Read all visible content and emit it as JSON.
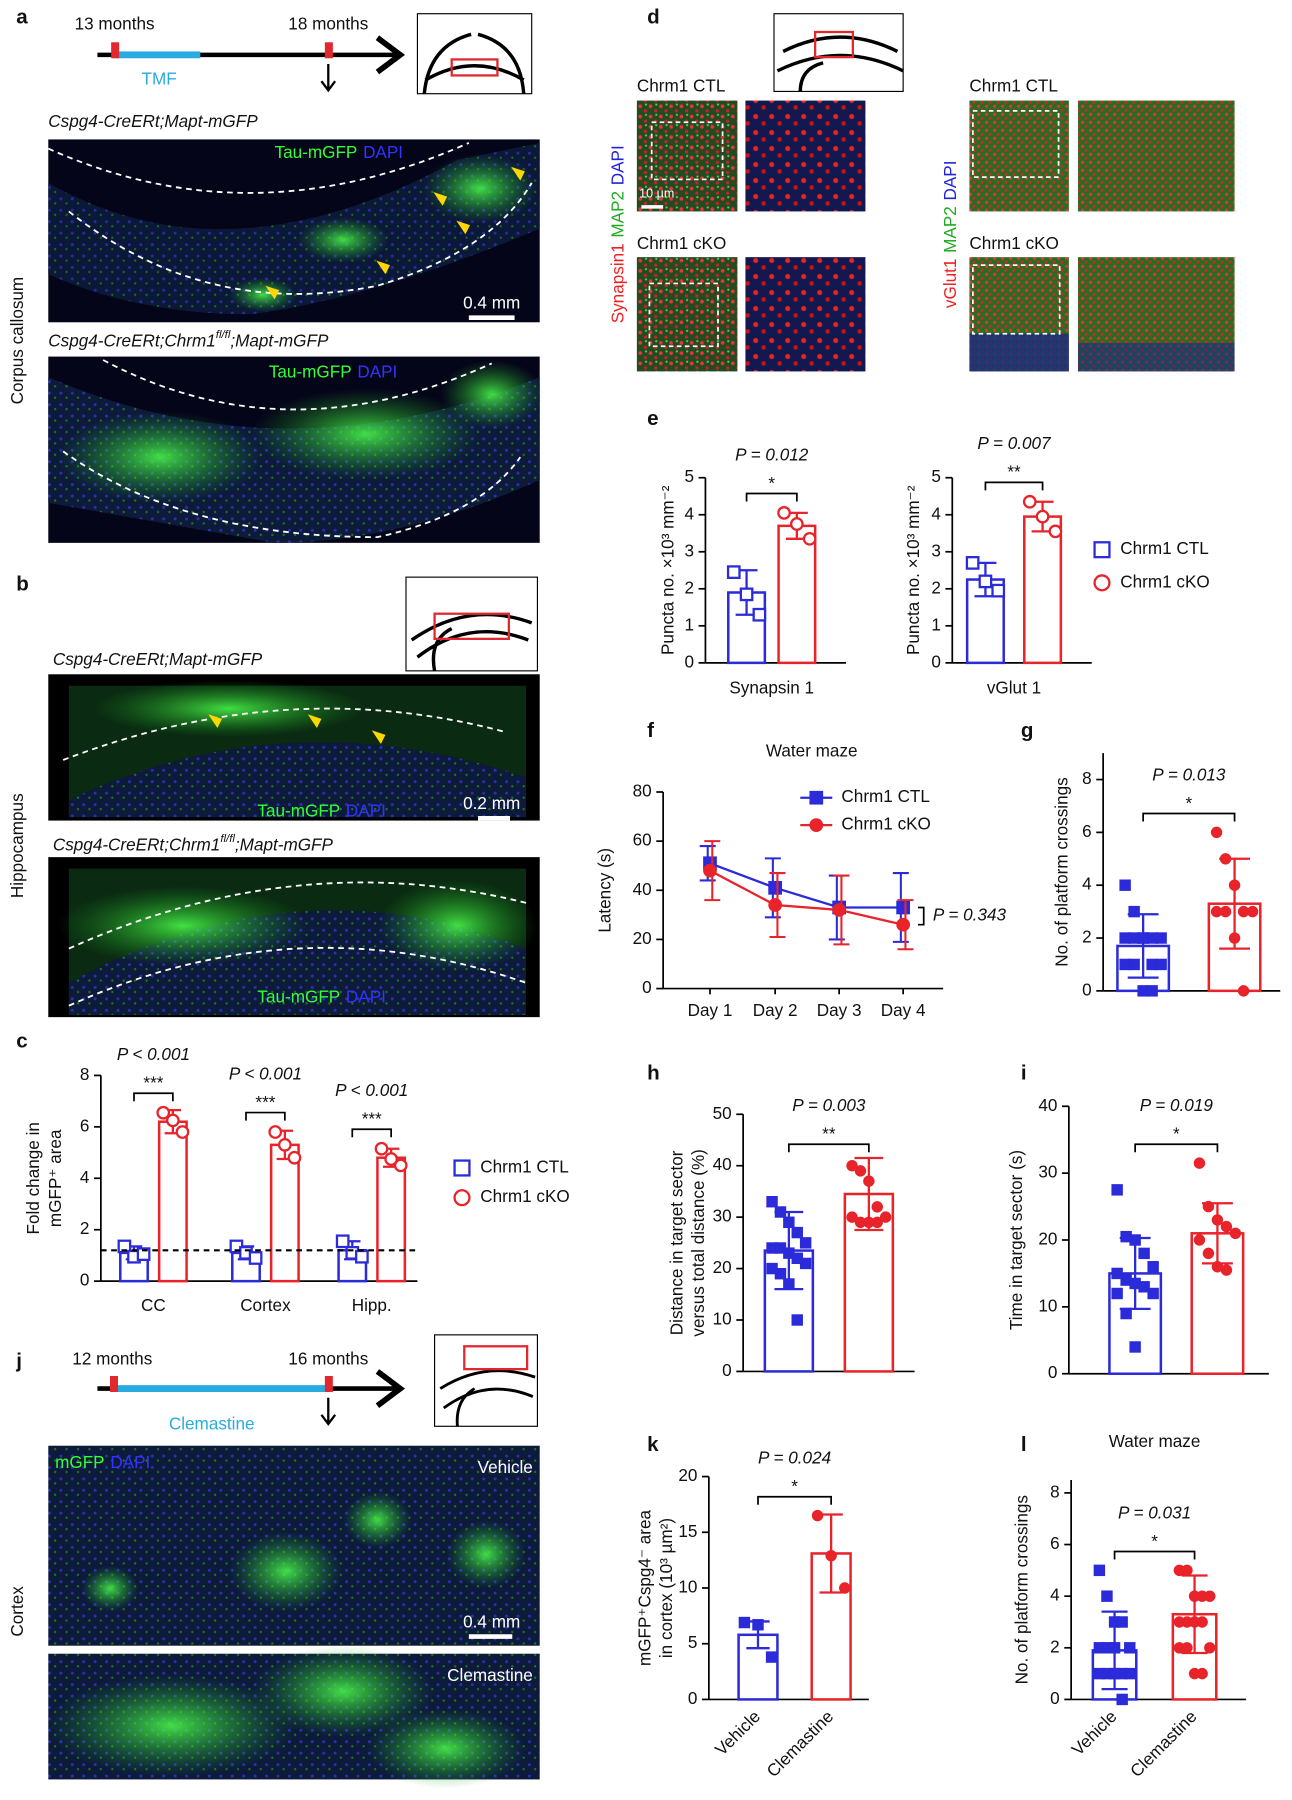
{
  "panels": {
    "a": {
      "letter": "a",
      "timeline": [
        "13 months",
        "18 months"
      ],
      "treatment": "TMF",
      "genotype_ctl": "Cspg4-CreERt;Mapt-mGFP",
      "genotype_cko": [
        "Cspg4-CreERt;Chrm1",
        "fl/fl",
        ";Mapt-mGFP"
      ],
      "stains": [
        "Tau-mGFP",
        "DAPI"
      ],
      "scale": "0.4 mm",
      "region": "Corpus callosum"
    },
    "b": {
      "letter": "b",
      "genotype_ctl": "Cspg4-CreERt;Mapt-mGFP",
      "genotype_cko": [
        "Cspg4-CreERt;Chrm1",
        "fl/fl",
        ";Mapt-mGFP"
      ],
      "stains": [
        "Tau-mGFP",
        "DAPI"
      ],
      "scale": "0.2 mm",
      "region": "Hippocampus"
    },
    "d": {
      "letter": "d",
      "groups": [
        "Chrm1 CTL",
        "Chrm1 cKO"
      ],
      "stains_left": [
        "Synapsin1",
        "MAP2",
        "DAPI"
      ],
      "stains_right": [
        "vGlut1",
        "MAP2",
        "DAPI"
      ],
      "scale": "10 µm"
    },
    "j": {
      "letter": "j",
      "timeline": [
        "12 months",
        "16 months"
      ],
      "treatment": "Clemastine",
      "stains": [
        "mGFP",
        "DAPI"
      ],
      "conditions": [
        "Vehicle",
        "Clemastine"
      ],
      "scale": "0.4 mm",
      "region": "Cortex"
    }
  },
  "chart_data": [
    {
      "panel": "c",
      "type": "bar",
      "ylabel": [
        "Fold change in",
        "mGFP⁺ area"
      ],
      "categories": [
        "CC",
        "Cortex",
        "Hipp."
      ],
      "ylim": [
        0,
        8
      ],
      "yticks": [
        0,
        2,
        4,
        6,
        8
      ],
      "reference_line": 1.2,
      "legend": "right",
      "series": [
        {
          "name": "Chrm1 CTL",
          "color": "#2b2bd9",
          "marker": "square",
          "filled": false,
          "values": [
            1.1,
            1.1,
            1.2
          ],
          "errors": [
            0.25,
            0.25,
            0.35
          ],
          "points": [
            [
              1.35,
              0.95,
              1.05
            ],
            [
              1.35,
              1.1,
              0.9
            ],
            [
              1.55,
              1.1,
              0.95
            ]
          ]
        },
        {
          "name": "Chrm1 cKO",
          "color": "#e8232a",
          "marker": "circle",
          "filled": false,
          "values": [
            6.2,
            5.3,
            4.8
          ],
          "errors": [
            0.45,
            0.55,
            0.35
          ],
          "points": [
            [
              6.55,
              6.25,
              5.8
            ],
            [
              5.8,
              5.3,
              4.8
            ],
            [
              5.15,
              4.75,
              4.5
            ]
          ]
        }
      ],
      "annotations": [
        {
          "p": "P < 0.001",
          "stars": "***"
        },
        {
          "p": "P < 0.001",
          "stars": "***"
        },
        {
          "p": "P < 0.001",
          "stars": "***"
        }
      ]
    },
    {
      "panel": "e",
      "type": "bar",
      "ylabel": [
        "Puncta no. ×10³ mm⁻²"
      ],
      "categories": [
        "Synapsin 1"
      ],
      "ylim": [
        0,
        5
      ],
      "yticks": [
        0,
        1,
        2,
        3,
        4,
        5
      ],
      "series": [
        {
          "color": "#2b2bd9",
          "marker": "square",
          "filled": false,
          "values": [
            1.9
          ],
          "errors": [
            0.6
          ],
          "points": [
            [
              2.45,
              1.85,
              1.3
            ]
          ]
        },
        {
          "color": "#e8232a",
          "marker": "circle",
          "filled": false,
          "values": [
            3.7
          ],
          "errors": [
            0.35
          ],
          "points": [
            [
              4.05,
              3.75,
              3.35
            ]
          ]
        }
      ],
      "annotations": [
        {
          "p": "P = 0.012",
          "stars": "*"
        }
      ]
    },
    {
      "type": "bar",
      "ylabel": [
        "Puncta no. ×10³ mm⁻²"
      ],
      "categories": [
        "vGlut 1"
      ],
      "ylim": [
        0,
        5
      ],
      "yticks": [
        0,
        1,
        2,
        3,
        4,
        5
      ],
      "legend": "right",
      "series": [
        {
          "name": "Chrm1 CTL",
          "color": "#2b2bd9",
          "marker": "square",
          "filled": false,
          "values": [
            2.25
          ],
          "errors": [
            0.45
          ],
          "points": [
            [
              2.7,
              2.2,
              1.95
            ]
          ]
        },
        {
          "name": "Chrm1 cKO",
          "color": "#e8232a",
          "marker": "circle",
          "filled": false,
          "values": [
            3.95
          ],
          "errors": [
            0.4
          ],
          "points": [
            [
              4.35,
              3.95,
              3.55
            ]
          ]
        }
      ],
      "annotations": [
        {
          "p": "P = 0.007",
          "stars": "**"
        }
      ]
    },
    {
      "panel": "f",
      "type": "line",
      "title": "Water maze",
      "ylabel": [
        "Latency (s)"
      ],
      "categories": [
        "Day 1",
        "Day 2",
        "Day 3",
        "Day 4"
      ],
      "ylim": [
        0,
        80
      ],
      "yticks": [
        0,
        20,
        40,
        60,
        80
      ],
      "legend": "top",
      "series": [
        {
          "name": "Chrm1 CTL",
          "color": "#2b2bd9",
          "marker": "square",
          "filled": true,
          "values": [
            51,
            41,
            33,
            33
          ],
          "errors": [
            7,
            12,
            13,
            14
          ]
        },
        {
          "name": "Chrm1 cKO",
          "color": "#e8232a",
          "marker": "circle",
          "filled": true,
          "values": [
            48,
            34,
            32,
            26
          ],
          "errors": [
            12,
            13,
            14,
            10
          ]
        }
      ],
      "annotation": "P = 0.343"
    },
    {
      "panel": "g",
      "type": "bar",
      "ylabel": [
        "No. of platform crossings"
      ],
      "ylim": [
        0,
        9
      ],
      "yticks": [
        0,
        2,
        4,
        6,
        8
      ],
      "series": [
        {
          "color": "#2b2bd9",
          "marker": "square",
          "filled": true,
          "values": [
            1.7
          ],
          "errors": [
            1.2
          ],
          "points": [
            [
              4,
              3,
              2,
              2,
              2,
              2,
              2,
              2,
              1,
              1,
              1,
              1,
              0,
              0
            ]
          ]
        },
        {
          "color": "#e8232a",
          "marker": "circle",
          "filled": true,
          "values": [
            3.3
          ],
          "errors": [
            1.7
          ],
          "points": [
            [
              6,
              5,
              4,
              3,
              3,
              3,
              3,
              2,
              0
            ]
          ]
        }
      ],
      "annotations": [
        {
          "p": "P = 0.013",
          "stars": "*"
        }
      ]
    },
    {
      "panel": "h",
      "type": "bar",
      "ylabel": [
        "Distance in target sector",
        "versus total distance (%)"
      ],
      "ylim": [
        0,
        50
      ],
      "yticks": [
        0,
        10,
        20,
        30,
        40,
        50
      ],
      "series": [
        {
          "color": "#2b2bd9",
          "marker": "square",
          "filled": true,
          "values": [
            23.5
          ],
          "errors": [
            7.5
          ],
          "points": [
            [
              33,
              31,
              29,
              27,
              25,
              24,
              24,
              23,
              22,
              21,
              20,
              19,
              17,
              10
            ]
          ]
        },
        {
          "color": "#e8232a",
          "marker": "circle",
          "filled": true,
          "values": [
            34.5
          ],
          "errors": [
            7
          ],
          "points": [
            [
              40,
              39,
              37,
              32,
              30,
              30,
              29,
              29,
              29
            ]
          ]
        }
      ],
      "annotations": [
        {
          "p": "P = 0.003",
          "stars": "**"
        }
      ]
    },
    {
      "panel": "i",
      "type": "bar",
      "ylabel": [
        "Time in target sector (s)"
      ],
      "ylim": [
        0,
        40
      ],
      "yticks": [
        0,
        10,
        20,
        30,
        40
      ],
      "series": [
        {
          "color": "#2b2bd9",
          "marker": "square",
          "filled": true,
          "values": [
            15
          ],
          "errors": [
            5.3
          ],
          "points": [
            [
              27.5,
              20.5,
              20,
              18,
              16,
              15,
              14,
              13.5,
              13,
              12,
              12,
              9,
              4
            ]
          ]
        },
        {
          "color": "#e8232a",
          "marker": "circle",
          "filled": true,
          "values": [
            21
          ],
          "errors": [
            4.5
          ],
          "points": [
            [
              31.5,
              25,
              23,
              22,
              21,
              20,
              18,
              16,
              15.5
            ]
          ]
        }
      ],
      "annotations": [
        {
          "p": "P = 0.019",
          "stars": "*"
        }
      ]
    },
    {
      "panel": "k",
      "type": "bar",
      "ylabel": [
        "mGFP⁺Cspg4⁻ area",
        "in cortex (10³ µm²)"
      ],
      "ylim": [
        0,
        20
      ],
      "yticks": [
        0,
        5,
        10,
        15,
        20
      ],
      "series_labels": true,
      "series": [
        {
          "name": "Vehicle",
          "color": "#2b2bd9",
          "marker": "square",
          "filled": true,
          "values": [
            5.8
          ],
          "errors": [
            1.2
          ],
          "points": [
            [
              6.9,
              6.7,
              3.8
            ]
          ]
        },
        {
          "name": "Clemastine",
          "color": "#e8232a",
          "marker": "circle",
          "filled": true,
          "values": [
            13.1
          ],
          "errors": [
            3.5
          ],
          "points": [
            [
              16.5,
              12.9,
              10
            ]
          ]
        }
      ],
      "annotations": [
        {
          "p": "P = 0.024",
          "stars": "*"
        }
      ]
    },
    {
      "panel": "l",
      "type": "bar",
      "title": "Water maze",
      "ylabel": [
        "No. of platform crossings"
      ],
      "ylim": [
        0,
        8.5
      ],
      "yticks": [
        0,
        2,
        4,
        6,
        8
      ],
      "series_labels": true,
      "series": [
        {
          "name": "Vehicle",
          "color": "#2b2bd9",
          "marker": "square",
          "filled": true,
          "values": [
            1.9
          ],
          "errors": [
            1.5
          ],
          "points": [
            [
              5,
              4,
              3,
              3,
              2,
              2,
              2,
              2,
              1,
              1,
              1,
              1,
              1,
              0
            ]
          ]
        },
        {
          "name": "Clemastine",
          "color": "#e8232a",
          "marker": "circle",
          "filled": true,
          "values": [
            3.3
          ],
          "errors": [
            1.5
          ],
          "points": [
            [
              5,
              5,
              4,
              4,
              4,
              3,
              3,
              3,
              3,
              2,
              2,
              2,
              1,
              1
            ]
          ]
        }
      ],
      "annotations": [
        {
          "p": "P = 0.031",
          "stars": "*"
        }
      ]
    }
  ]
}
